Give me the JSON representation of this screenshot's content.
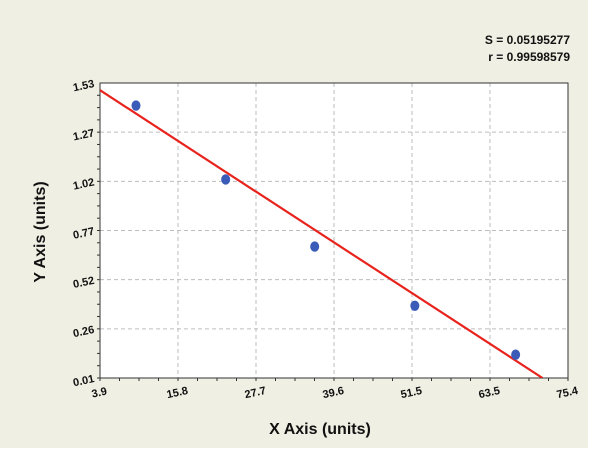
{
  "chart_data": {
    "type": "scatter",
    "title": "",
    "xlabel": "X Axis (units)",
    "ylabel": "Y Axis (units)",
    "xlim": [
      3.9,
      75.4
    ],
    "ylim": [
      0.01,
      1.53
    ],
    "x_ticks": [
      "3.9",
      "15.8",
      "27.7",
      "39.6",
      "51.5",
      "63.5",
      "75.4"
    ],
    "y_ticks": [
      "0.01",
      "0.26",
      "0.52",
      "0.77",
      "1.02",
      "1.27",
      "1.53"
    ],
    "grid": true,
    "legend": "none",
    "series": [
      {
        "type": "scatter",
        "color": "#3a5bb8",
        "points": [
          {
            "x": 9.4,
            "y": 1.414
          },
          {
            "x": 23.1,
            "y": 1.033
          },
          {
            "x": 36.7,
            "y": 0.687
          },
          {
            "x": 52.0,
            "y": 0.382
          },
          {
            "x": 67.4,
            "y": 0.13
          }
        ]
      },
      {
        "type": "line",
        "color": "#e8231d",
        "points": [
          {
            "x": 3.9,
            "y": 1.493
          },
          {
            "x": 71.5,
            "y": 0.01
          }
        ]
      }
    ],
    "annotations": [
      "S = 0.05195277",
      "r = 0.99598579"
    ]
  }
}
